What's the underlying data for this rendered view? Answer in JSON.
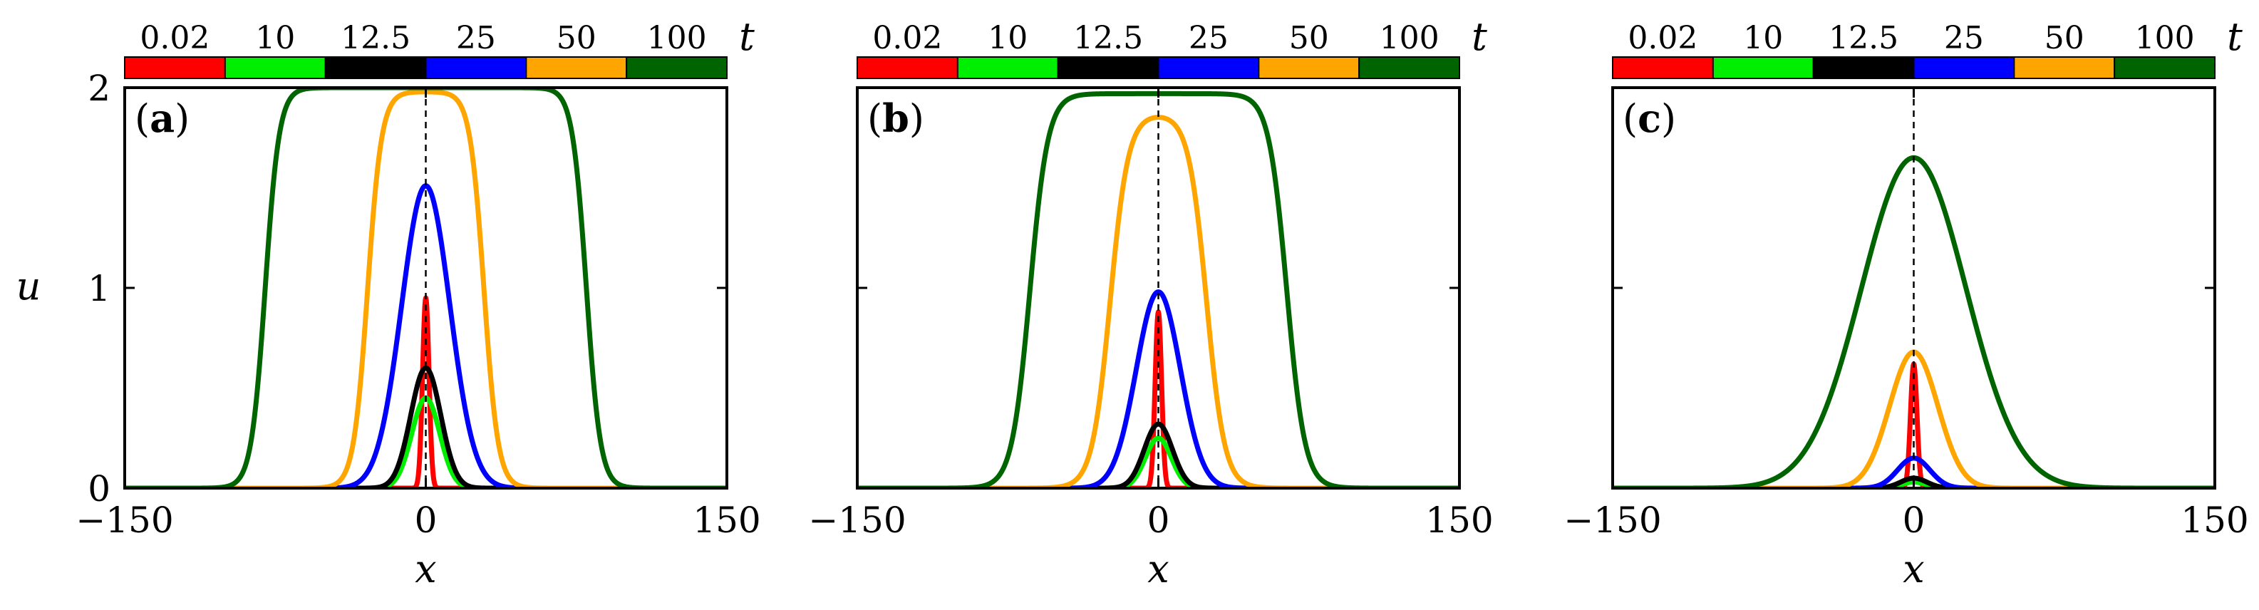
{
  "chart_data": [
    {
      "type": "line",
      "panel_label": {
        "open": "(",
        "letter": "a",
        "close": ")"
      },
      "xlabel": "x",
      "ylabel": "u",
      "xlim": [
        -150,
        150
      ],
      "ylim": [
        0,
        2
      ],
      "xticks": [
        "−150",
        "0",
        "150"
      ],
      "yticks": [
        "0",
        "1",
        "2"
      ],
      "center_line_x": 0,
      "legend_title": "t",
      "series": [
        {
          "name": "0.02",
          "color": "#ff0000",
          "shape": "gauss",
          "amp": 0.95,
          "w": 1.6
        },
        {
          "name": "10",
          "color": "#00ee00",
          "shape": "gauss",
          "amp": 0.45,
          "w": 7
        },
        {
          "name": "12.5",
          "color": "#000000",
          "shape": "gauss",
          "amp": 0.6,
          "w": 7.5
        },
        {
          "name": "25",
          "color": "#0000ff",
          "shape": "gauss",
          "amp": 1.51,
          "w": 12
        },
        {
          "name": "50",
          "color": "#ffa500",
          "shape": "plateau",
          "amp": 1.98,
          "half": 29,
          "edge": 7
        },
        {
          "name": "100",
          "color": "#006400",
          "shape": "plateau",
          "amp": 2.0,
          "half": 80,
          "edge": 7
        }
      ]
    },
    {
      "type": "line",
      "panel_label": {
        "open": "(",
        "letter": "b",
        "close": ")"
      },
      "xlabel": "x",
      "ylabel": "",
      "xlim": [
        -150,
        150
      ],
      "ylim": [
        0,
        2
      ],
      "xticks": [
        "−150",
        "0",
        "150"
      ],
      "yticks": [],
      "center_line_x": 0,
      "legend_title": "t",
      "series": [
        {
          "name": "0.02",
          "color": "#ff0000",
          "shape": "gauss",
          "amp": 0.88,
          "w": 1.6
        },
        {
          "name": "10",
          "color": "#00ee00",
          "shape": "gauss",
          "amp": 0.25,
          "w": 6.5
        },
        {
          "name": "12.5",
          "color": "#000000",
          "shape": "gauss",
          "amp": 0.32,
          "w": 7
        },
        {
          "name": "25",
          "color": "#0000ff",
          "shape": "gauss",
          "amp": 0.98,
          "w": 11
        },
        {
          "name": "50",
          "color": "#ffa500",
          "shape": "plateau",
          "amp": 1.87,
          "half": 24,
          "edge": 9
        },
        {
          "name": "100",
          "color": "#006400",
          "shape": "plateau",
          "amp": 1.97,
          "half": 64,
          "edge": 9
        }
      ]
    },
    {
      "type": "line",
      "panel_label": {
        "open": "(",
        "letter": "c",
        "close": ")"
      },
      "xlabel": "x",
      "ylabel": "",
      "xlim": [
        -150,
        150
      ],
      "ylim": [
        0,
        2
      ],
      "xticks": [
        "−150",
        "0",
        "150"
      ],
      "yticks": [],
      "center_line_x": 0,
      "legend_title": "t",
      "series": [
        {
          "name": "0.02",
          "color": "#ff0000",
          "shape": "gauss",
          "amp": 0.62,
          "w": 1.6
        },
        {
          "name": "10",
          "color": "#00ee00",
          "shape": "gauss",
          "amp": 0.03,
          "w": 6
        },
        {
          "name": "12.5",
          "color": "#000000",
          "shape": "gauss",
          "amp": 0.05,
          "w": 6.5
        },
        {
          "name": "25",
          "color": "#0000ff",
          "shape": "gauss",
          "amp": 0.15,
          "w": 8
        },
        {
          "name": "50",
          "color": "#ffa500",
          "shape": "gauss",
          "amp": 0.68,
          "w": 12
        },
        {
          "name": "100",
          "color": "#006400",
          "shape": "gauss",
          "amp": 1.65,
          "w": 26
        }
      ]
    }
  ]
}
